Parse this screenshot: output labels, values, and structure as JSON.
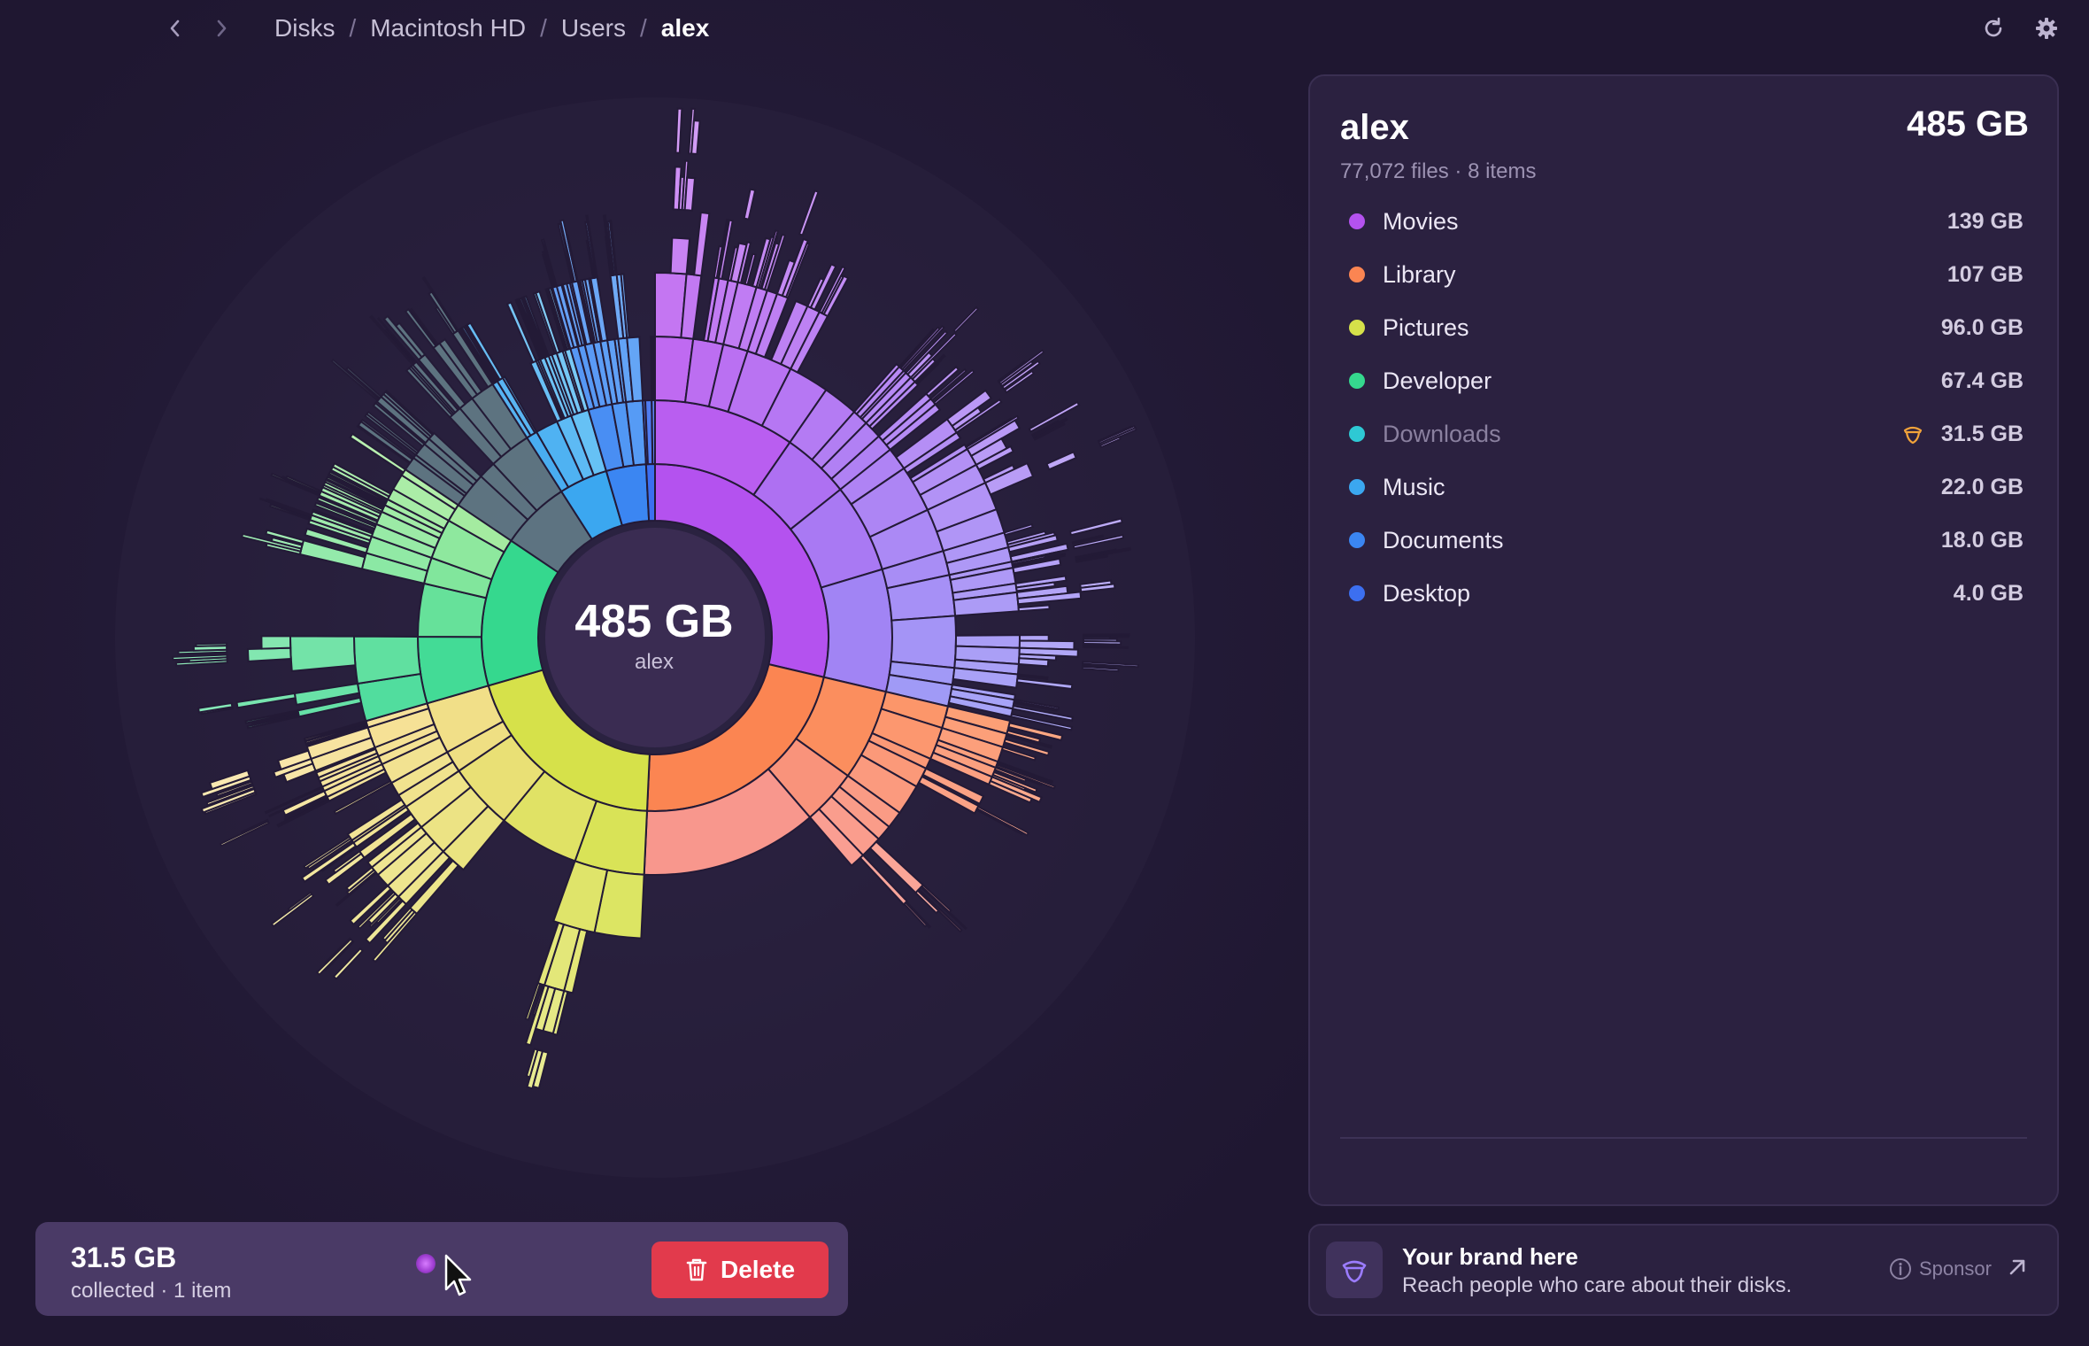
{
  "nav": {
    "back_icon": "chevron-left-icon",
    "forward_icon": "chevron-right-icon",
    "breadcrumb": [
      "Disks",
      "Macintosh HD",
      "Users",
      "alex"
    ],
    "separator": "/",
    "refresh_icon": "refresh-icon",
    "settings_icon": "gear-icon"
  },
  "sunburst": {
    "center_size": "485 GB",
    "center_name": "alex"
  },
  "panel": {
    "title": "alex",
    "total": "485 GB",
    "meta": "77,072 files · 8 items",
    "items": [
      {
        "label": "Movies",
        "size": "139 GB",
        "color": "#b452ef"
      },
      {
        "label": "Library",
        "size": "107 GB",
        "color": "#fb8552"
      },
      {
        "label": "Pictures",
        "size": "96.0 GB",
        "color": "#d6e14a"
      },
      {
        "label": "Developer",
        "size": "67.4 GB",
        "color": "#35d88e"
      },
      {
        "label": "Downloads",
        "size": "31.5 GB",
        "color": "#2ec9d4",
        "collected": true
      },
      {
        "label": "Music",
        "size": "22.0 GB",
        "color": "#3ba7f0"
      },
      {
        "label": "Documents",
        "size": "18.0 GB",
        "color": "#3b86f2"
      },
      {
        "label": "Desktop",
        "size": "4.0 GB",
        "color": "#3c6ff0"
      }
    ]
  },
  "collector": {
    "size": "31.5 GB",
    "meta": "collected · 1 item",
    "delete_label": "Delete",
    "delete_icon": "trash-icon"
  },
  "sponsor": {
    "title": "Your brand here",
    "subtitle": "Reach people who care about their disks.",
    "info_label": "Sponsor",
    "info_icon": "info-icon",
    "link_icon": "external-arrow-icon"
  }
}
